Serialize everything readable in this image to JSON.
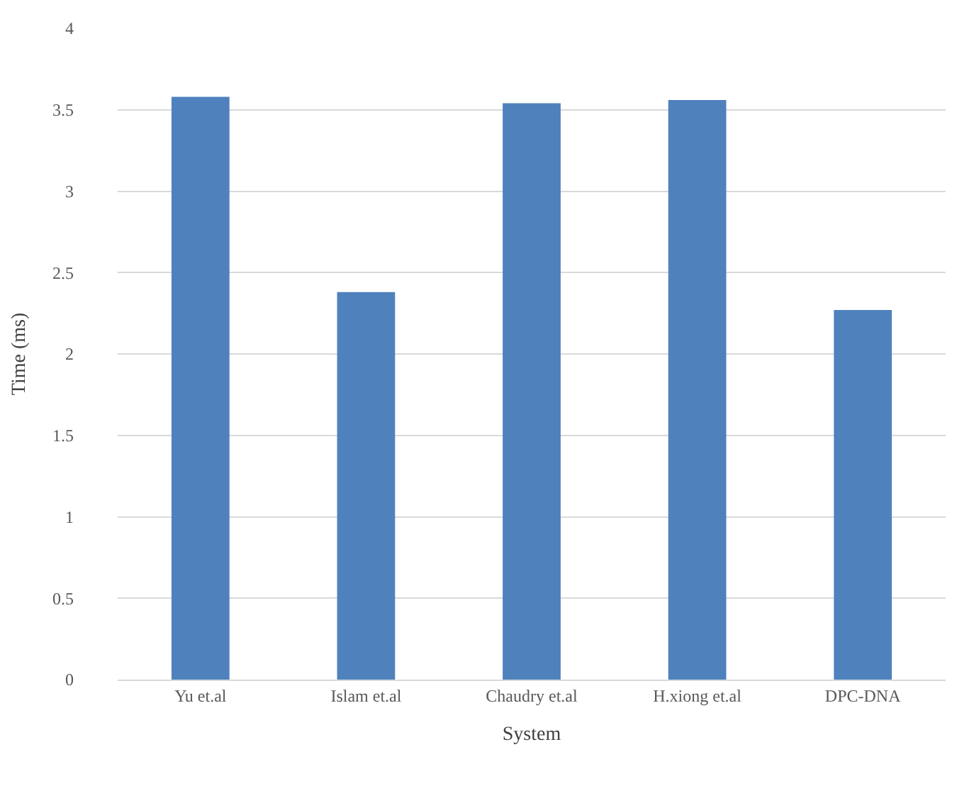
{
  "chart_data": {
    "type": "bar",
    "xlabel": "System",
    "ylabel": "Time (ms)",
    "categories": [
      "Yu et.al",
      "Islam et.al",
      "Chaudry et.al",
      "H.xiong et.al",
      "DPC-DNA"
    ],
    "values": [
      3.58,
      2.38,
      3.54,
      3.56,
      2.27
    ],
    "color": "#4f81bd",
    "ylim": [
      0,
      4
    ],
    "yticks": [
      0,
      0.5,
      1,
      1.5,
      2,
      2.5,
      3,
      3.5,
      4
    ],
    "grid": "y"
  }
}
